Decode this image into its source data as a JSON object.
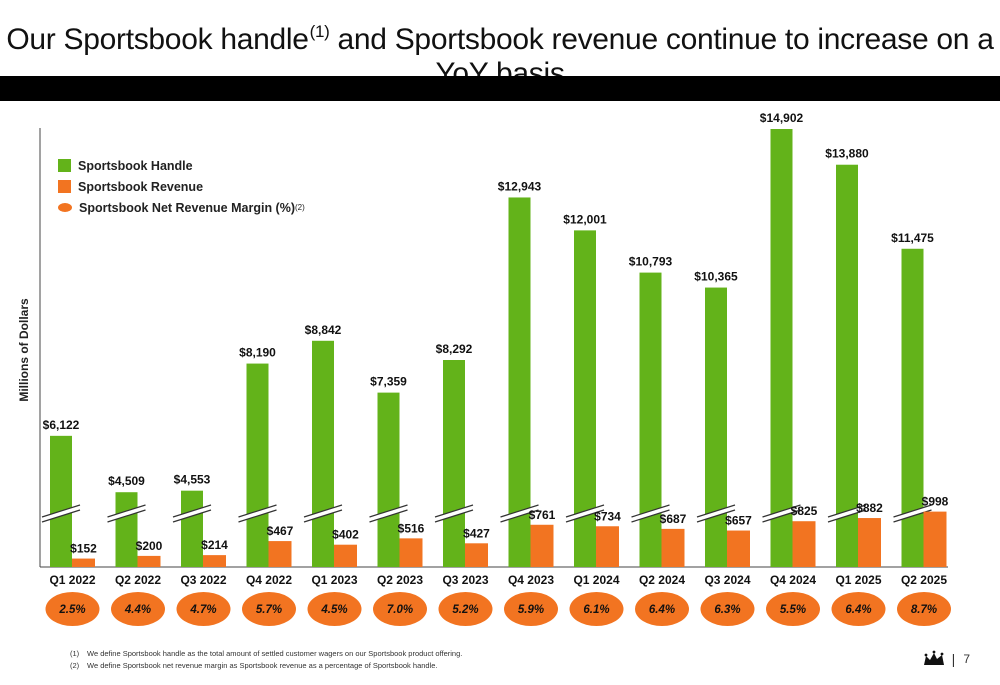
{
  "title": {
    "part1": "Our Sportsbook handle",
    "sup": "(1)",
    "part2": " and Sportsbook revenue continue to increase on a YoY basis"
  },
  "legend": {
    "handle": "Sportsbook Handle",
    "revenue": "Sportsbook Revenue",
    "margin": "Sportsbook Net Revenue Margin (%)",
    "margin_sup": "(2)"
  },
  "colors": {
    "handle": "#63b31a",
    "revenue": "#f27421",
    "margin": "#f27421"
  },
  "chart_data": {
    "type": "bar",
    "ylabel": "Millions of Dollars",
    "axis_break": true,
    "categories": [
      "Q1 2022",
      "Q2 2022",
      "Q3 2022",
      "Q4 2022",
      "Q1 2023",
      "Q2 2023",
      "Q3 2023",
      "Q4 2023",
      "Q1 2024",
      "Q2 2024",
      "Q3 2024",
      "Q4 2024",
      "Q1 2025",
      "Q2 2025"
    ],
    "series": [
      {
        "name": "Sportsbook Handle",
        "values": [
          6122,
          4509,
          4553,
          8190,
          8842,
          7359,
          8292,
          12943,
          12001,
          10793,
          10365,
          14902,
          13880,
          11475
        ],
        "labels": [
          "$6,122",
          "$4,509",
          "$4,553",
          "$8,190",
          "$8,842",
          "$7,359",
          "$8,292",
          "$12,943",
          "$12,001",
          "$10,793",
          "$10,365",
          "$14,902",
          "$13,880",
          "$11,475"
        ]
      },
      {
        "name": "Sportsbook Revenue",
        "values": [
          152,
          200,
          214,
          467,
          402,
          516,
          427,
          761,
          734,
          687,
          657,
          825,
          882,
          998
        ],
        "labels": [
          "$152",
          "$200",
          "$214",
          "$467",
          "$402",
          "$516",
          "$427",
          "$761",
          "$734",
          "$687",
          "$657",
          "$825",
          "$882",
          "$998"
        ]
      },
      {
        "name": "Sportsbook Net Revenue Margin (%)",
        "values": [
          2.5,
          4.4,
          4.7,
          5.7,
          4.5,
          7.0,
          5.2,
          5.9,
          6.1,
          6.4,
          6.3,
          5.5,
          6.4,
          8.7
        ],
        "labels": [
          "2.5%",
          "4.4%",
          "4.7%",
          "5.7%",
          "4.5%",
          "7.0%",
          "5.2%",
          "5.9%",
          "6.1%",
          "6.4%",
          "6.3%",
          "5.5%",
          "6.4%",
          "8.7%"
        ]
      }
    ]
  },
  "footnotes": [
    {
      "num": "(1)",
      "text": "We define Sportsbook handle as the total amount of settled customer wagers on our Sportsbook product offering."
    },
    {
      "num": "(2)",
      "text": "We define Sportsbook net revenue margin as Sportsbook revenue as a percentage of Sportsbook handle."
    }
  ],
  "page_number": "7",
  "logo_icon": "crown-logo-icon"
}
